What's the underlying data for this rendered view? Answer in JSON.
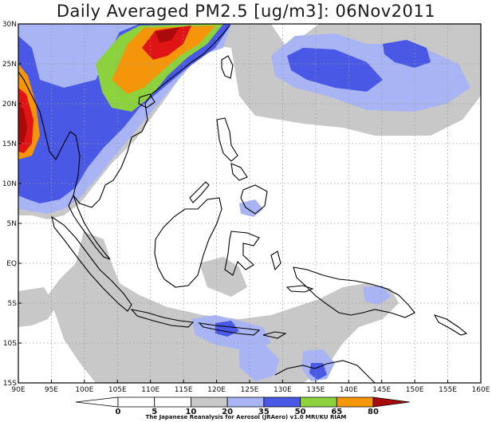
{
  "title": "Daily Averaged PM2.5 [ug/m3]: 06Nov2011",
  "credit": "The Japanese Reanalysis for Aerosol (JRAero) v1.0 MRI/KU RIAM",
  "lon_labels": [
    "90E",
    "95E",
    "100E",
    "105E",
    "110E",
    "115E",
    "120E",
    "125E",
    "130E",
    "135E",
    "140E",
    "145E",
    "150E",
    "155E",
    "160E"
  ],
  "lat_labels": [
    "30N",
    "25N",
    "20N",
    "15N",
    "10N",
    "5N",
    "EQ",
    "5S",
    "10S",
    "15S"
  ],
  "colorbar": {
    "tick_labels": [
      "0",
      "5",
      "10",
      "20",
      "35",
      "50",
      "65",
      "80"
    ],
    "bins": [
      {
        "range": "<0",
        "color": "#ffffff"
      },
      {
        "range": "0-5",
        "color": "#ffffff"
      },
      {
        "range": "5-10",
        "color": "#ffffff"
      },
      {
        "range": "10-20",
        "color": "#c8c8c8"
      },
      {
        "range": "20-35",
        "color": "#a8b4f4"
      },
      {
        "range": "35-50",
        "color": "#4a58e6"
      },
      {
        "range": "50-65",
        "color": "#8cd23c"
      },
      {
        "range": "65-80",
        "color": "#f5960a"
      },
      {
        "range": ">80",
        "color": "#aa0a0a"
      }
    ]
  },
  "colors": {
    "grey": "#c8c8c8",
    "lightblue": "#a8b4f4",
    "blue": "#4a58e6",
    "green": "#8cd23c",
    "orange": "#f5960a",
    "red": "#e01414",
    "darkred": "#aa0a0a",
    "coast": "#000000",
    "grid": "#9a9a9a"
  }
}
